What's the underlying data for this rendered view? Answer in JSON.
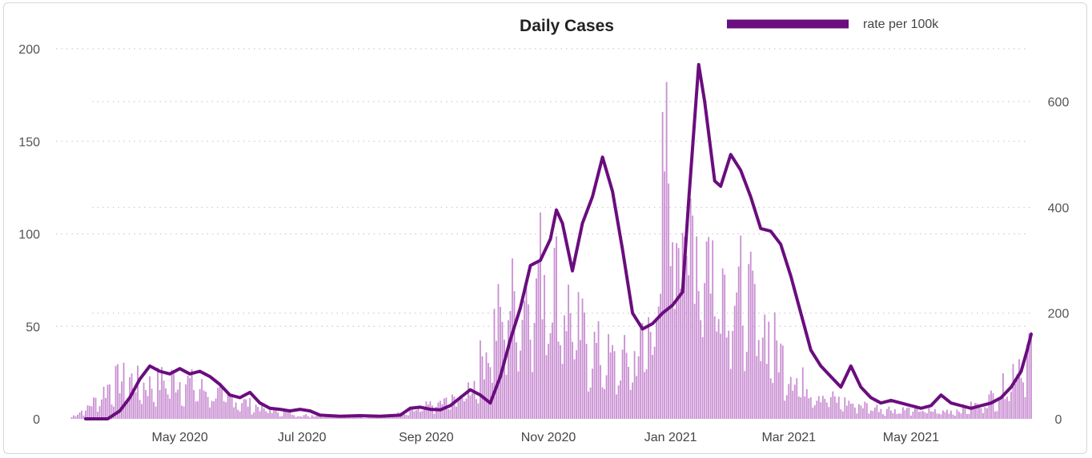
{
  "chart_data": {
    "type": "bar+line",
    "title": "Daily Cases",
    "colors": {
      "bars": "#c98fd2",
      "line": "#6a0d7e",
      "grid": "#cccccc"
    },
    "legend": {
      "position": "top-right",
      "entries": [
        {
          "label": "rate per 100k",
          "type": "line"
        }
      ]
    },
    "x_axis": {
      "type": "date",
      "range": [
        "2020-03-01",
        "2021-06-30"
      ],
      "ticks": [
        {
          "date": "2020-05-01",
          "label": "May 2020"
        },
        {
          "date": "2020-07-01",
          "label": "Jul 2020"
        },
        {
          "date": "2020-09-01",
          "label": "Sep 2020"
        },
        {
          "date": "2020-11-01",
          "label": "Nov 2020"
        },
        {
          "date": "2021-01-01",
          "label": "Jan 2021"
        },
        {
          "date": "2021-03-01",
          "label": "Mar 2021"
        },
        {
          "date": "2021-05-01",
          "label": "May 2021"
        }
      ]
    },
    "y_left": {
      "range": [
        0,
        200
      ],
      "ticks": [
        "0",
        "50",
        "100",
        "150",
        "200"
      ]
    },
    "y_right": {
      "range": [
        0,
        700
      ],
      "ticks": [
        "0",
        "200",
        "400",
        "600"
      ]
    },
    "grid": true,
    "series": [
      {
        "type": "bar",
        "axis": "left",
        "points": [
          [
            "2020-03-01",
            0
          ],
          [
            "2020-03-10",
            2
          ],
          [
            "2020-03-20",
            10
          ],
          [
            "2020-03-28",
            20
          ],
          [
            "2020-04-05",
            22
          ],
          [
            "2020-04-15",
            18
          ],
          [
            "2020-04-25",
            22
          ],
          [
            "2020-05-05",
            20
          ],
          [
            "2020-05-15",
            15
          ],
          [
            "2020-05-25",
            12
          ],
          [
            "2020-06-05",
            8
          ],
          [
            "2020-06-15",
            5
          ],
          [
            "2020-07-01",
            2
          ],
          [
            "2020-07-15",
            2
          ],
          [
            "2020-08-01",
            1
          ],
          [
            "2020-08-15",
            2
          ],
          [
            "2020-08-25",
            4
          ],
          [
            "2020-09-05",
            8
          ],
          [
            "2020-09-15",
            10
          ],
          [
            "2020-09-25",
            20
          ],
          [
            "2020-10-01",
            40
          ],
          [
            "2020-10-10",
            60
          ],
          [
            "2020-10-20",
            70
          ],
          [
            "2020-10-30",
            85
          ],
          [
            "2020-11-05",
            75
          ],
          [
            "2020-11-15",
            50
          ],
          [
            "2020-11-25",
            38
          ],
          [
            "2020-12-05",
            30
          ],
          [
            "2020-12-15",
            35
          ],
          [
            "2020-12-25",
            60
          ],
          [
            "2020-12-29",
            140
          ],
          [
            "2021-01-05",
            120
          ],
          [
            "2021-01-15",
            100
          ],
          [
            "2021-01-25",
            85
          ],
          [
            "2021-02-05",
            70
          ],
          [
            "2021-02-15",
            55
          ],
          [
            "2021-02-25",
            35
          ],
          [
            "2021-03-05",
            22
          ],
          [
            "2021-03-15",
            15
          ],
          [
            "2021-03-25",
            10
          ],
          [
            "2021-04-05",
            8
          ],
          [
            "2021-04-15",
            6
          ],
          [
            "2021-04-25",
            5
          ],
          [
            "2021-05-05",
            5
          ],
          [
            "2021-05-15",
            4
          ],
          [
            "2021-05-25",
            5
          ],
          [
            "2021-06-05",
            8
          ],
          [
            "2021-06-15",
            15
          ],
          [
            "2021-06-25",
            35
          ],
          [
            "2021-06-30",
            40
          ]
        ]
      },
      {
        "type": "line",
        "axis": "right",
        "name": "rate per 100k",
        "points": [
          [
            "2020-03-15",
            0
          ],
          [
            "2020-03-26",
            0
          ],
          [
            "2020-04-01",
            15
          ],
          [
            "2020-04-06",
            40
          ],
          [
            "2020-04-11",
            75
          ],
          [
            "2020-04-16",
            100
          ],
          [
            "2020-04-21",
            90
          ],
          [
            "2020-04-26",
            85
          ],
          [
            "2020-05-01",
            95
          ],
          [
            "2020-05-06",
            85
          ],
          [
            "2020-05-11",
            90
          ],
          [
            "2020-05-16",
            80
          ],
          [
            "2020-05-21",
            65
          ],
          [
            "2020-05-26",
            45
          ],
          [
            "2020-05-31",
            40
          ],
          [
            "2020-06-05",
            50
          ],
          [
            "2020-06-10",
            30
          ],
          [
            "2020-06-15",
            20
          ],
          [
            "2020-06-20",
            18
          ],
          [
            "2020-06-25",
            15
          ],
          [
            "2020-06-30",
            18
          ],
          [
            "2020-07-05",
            15
          ],
          [
            "2020-07-10",
            7
          ],
          [
            "2020-07-20",
            5
          ],
          [
            "2020-07-30",
            6
          ],
          [
            "2020-08-09",
            5
          ],
          [
            "2020-08-19",
            7
          ],
          [
            "2020-08-24",
            20
          ],
          [
            "2020-08-29",
            22
          ],
          [
            "2020-09-03",
            18
          ],
          [
            "2020-09-08",
            17
          ],
          [
            "2020-09-13",
            25
          ],
          [
            "2020-09-18",
            40
          ],
          [
            "2020-09-23",
            55
          ],
          [
            "2020-09-28",
            45
          ],
          [
            "2020-10-03",
            30
          ],
          [
            "2020-10-08",
            80
          ],
          [
            "2020-10-13",
            150
          ],
          [
            "2020-10-18",
            210
          ],
          [
            "2020-10-23",
            290
          ],
          [
            "2020-10-28",
            300
          ],
          [
            "2020-11-02",
            340
          ],
          [
            "2020-11-05",
            395
          ],
          [
            "2020-11-08",
            370
          ],
          [
            "2020-11-13",
            280
          ],
          [
            "2020-11-18",
            370
          ],
          [
            "2020-11-23",
            420
          ],
          [
            "2020-11-28",
            495
          ],
          [
            "2020-12-03",
            430
          ],
          [
            "2020-12-08",
            320
          ],
          [
            "2020-12-13",
            200
          ],
          [
            "2020-12-18",
            170
          ],
          [
            "2020-12-23",
            180
          ],
          [
            "2020-12-28",
            200
          ],
          [
            "2021-01-02",
            215
          ],
          [
            "2021-01-07",
            240
          ],
          [
            "2021-01-10",
            410
          ],
          [
            "2021-01-15",
            670
          ],
          [
            "2021-01-18",
            600
          ],
          [
            "2021-01-23",
            450
          ],
          [
            "2021-01-26",
            440
          ],
          [
            "2021-01-31",
            500
          ],
          [
            "2021-02-05",
            470
          ],
          [
            "2021-02-10",
            420
          ],
          [
            "2021-02-15",
            360
          ],
          [
            "2021-02-20",
            355
          ],
          [
            "2021-02-25",
            330
          ],
          [
            "2021-03-02",
            270
          ],
          [
            "2021-03-07",
            200
          ],
          [
            "2021-03-12",
            130
          ],
          [
            "2021-03-17",
            100
          ],
          [
            "2021-03-22",
            80
          ],
          [
            "2021-03-27",
            60
          ],
          [
            "2021-04-01",
            100
          ],
          [
            "2021-04-06",
            60
          ],
          [
            "2021-04-11",
            40
          ],
          [
            "2021-04-16",
            30
          ],
          [
            "2021-04-21",
            35
          ],
          [
            "2021-04-26",
            30
          ],
          [
            "2021-05-01",
            25
          ],
          [
            "2021-05-06",
            20
          ],
          [
            "2021-05-11",
            25
          ],
          [
            "2021-05-16",
            45
          ],
          [
            "2021-05-21",
            30
          ],
          [
            "2021-05-26",
            25
          ],
          [
            "2021-05-31",
            20
          ],
          [
            "2021-06-05",
            25
          ],
          [
            "2021-06-10",
            30
          ],
          [
            "2021-06-15",
            40
          ],
          [
            "2021-06-20",
            60
          ],
          [
            "2021-06-25",
            90
          ],
          [
            "2021-06-28",
            130
          ],
          [
            "2021-06-30",
            160
          ]
        ]
      }
    ]
  }
}
